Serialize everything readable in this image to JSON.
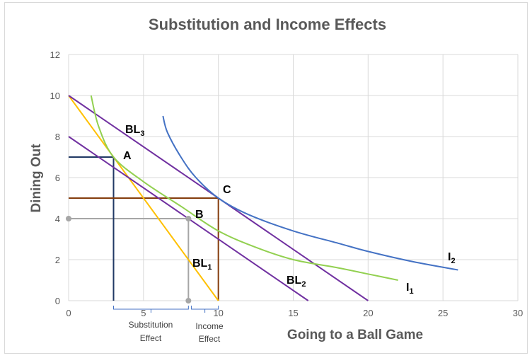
{
  "chart_data": {
    "type": "line",
    "title": "Substitution and Income Effects",
    "xlabel": "Going to a Ball Game",
    "ylabel": "Dining Out",
    "xlim": [
      0,
      30
    ],
    "ylim": [
      0,
      12
    ],
    "xticks": [
      0,
      5,
      10,
      15,
      20,
      25,
      30
    ],
    "yticks": [
      0,
      2,
      4,
      6,
      8,
      10,
      12
    ],
    "grid": "vertical and horizontal",
    "colors": {
      "bl1": "#ffc000",
      "bl2": "#7030a0",
      "bl3": "#7030a0",
      "i1": "#92d050",
      "i2": "#4472c4",
      "guide_a": "#203864",
      "guide_b": "#a6a6a6",
      "guide_c": "#843c0c",
      "bracket": "#4472c4"
    },
    "series": [
      {
        "id": "bl1",
        "points": [
          [
            0,
            10
          ],
          [
            10,
            0
          ]
        ]
      },
      {
        "id": "bl2",
        "points": [
          [
            0,
            8
          ],
          [
            16,
            0
          ]
        ]
      },
      {
        "id": "bl3",
        "points": [
          [
            0,
            10
          ],
          [
            20,
            0
          ]
        ]
      },
      {
        "id": "i1",
        "points": [
          [
            1.5,
            10
          ],
          [
            2,
            8.5
          ],
          [
            3,
            7
          ],
          [
            5,
            5.8
          ],
          [
            7.5,
            4.6
          ],
          [
            10,
            3.4
          ],
          [
            12.5,
            2.6
          ],
          [
            15,
            2.0
          ],
          [
            18,
            1.6
          ],
          [
            20,
            1.3
          ],
          [
            22,
            1.0
          ]
        ]
      },
      {
        "id": "i2",
        "points": [
          [
            6.3,
            9
          ],
          [
            6.6,
            8.2
          ],
          [
            7.5,
            7
          ],
          [
            8.5,
            6
          ],
          [
            10,
            5
          ],
          [
            12,
            4.2
          ],
          [
            15,
            3.4
          ],
          [
            18,
            2.8
          ],
          [
            20,
            2.4
          ],
          [
            23,
            1.9
          ],
          [
            26,
            1.5
          ]
        ]
      }
    ],
    "points": [
      {
        "label": "A",
        "x": 3,
        "y": 7
      },
      {
        "label": "B",
        "x": 8,
        "y": 4
      },
      {
        "label": "C",
        "x": 10,
        "y": 5
      }
    ],
    "annotations": {
      "bl1": "BL",
      "bl1_sub": "1",
      "bl2": "BL",
      "bl2_sub": "2",
      "bl3": "BL",
      "bl3_sub": "3",
      "i1": "I",
      "i1_sub": "1",
      "i2": "I",
      "i2_sub": "2",
      "substitution_line1": "Substitution",
      "substitution_line2": "Effect",
      "income_line1": "Income",
      "income_line2": "Effect"
    }
  }
}
